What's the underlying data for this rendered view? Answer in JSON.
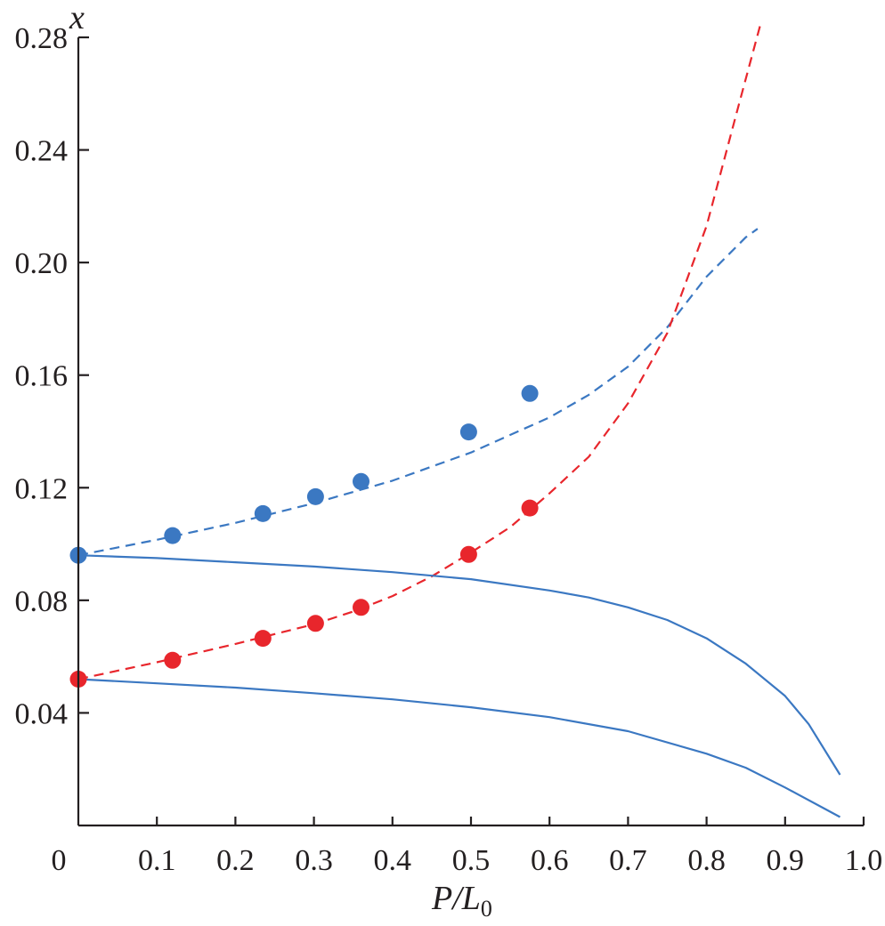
{
  "chart_data": {
    "type": "line",
    "title": "",
    "xlabel": {
      "main": "P/L",
      "subscript": "0"
    },
    "ylabel": "x",
    "xlim": [
      0,
      1.0
    ],
    "ylim": [
      0.0,
      0.28
    ],
    "xticks": [
      0,
      0.1,
      0.2,
      0.3,
      0.4,
      0.5,
      0.6,
      0.7,
      0.8,
      0.9,
      1.0
    ],
    "xtick_labels": [
      "0",
      "0.1",
      "0.2",
      "0.3",
      "0.4",
      "0.5",
      "0.6",
      "0.7",
      "0.8",
      "0.9",
      "1.0"
    ],
    "yticks": [
      0.04,
      0.08,
      0.12,
      0.16,
      0.2,
      0.24,
      0.28
    ],
    "ytick_labels": [
      "0.04",
      "0.08",
      "0.12",
      "0.16",
      "0.20",
      "0.24",
      "0.28"
    ],
    "grid": false,
    "legend": "none",
    "colors": {
      "blue": "#3b78c2",
      "red": "#e8262c",
      "axis": "#231f20"
    },
    "series": [
      {
        "name": "blue-dashed-fit",
        "style": "dashed",
        "color": "#3b78c2",
        "x": [
          0.0,
          0.1,
          0.2,
          0.3,
          0.4,
          0.5,
          0.6,
          0.65,
          0.7,
          0.75,
          0.8,
          0.85,
          0.865
        ],
        "y": [
          0.096,
          0.1015,
          0.1075,
          0.1145,
          0.1225,
          0.1325,
          0.145,
          0.153,
          0.163,
          0.177,
          0.195,
          0.209,
          0.212
        ]
      },
      {
        "name": "red-dashed-fit",
        "style": "dashed",
        "color": "#e8262c",
        "x": [
          0.0,
          0.1,
          0.2,
          0.3,
          0.35,
          0.4,
          0.45,
          0.5,
          0.55,
          0.6,
          0.65,
          0.7,
          0.75,
          0.8,
          0.84,
          0.87
        ],
        "y": [
          0.052,
          0.058,
          0.0645,
          0.0715,
          0.076,
          0.0815,
          0.0885,
          0.097,
          0.106,
          0.118,
          0.131,
          0.15,
          0.175,
          0.213,
          0.255,
          0.286
        ]
      },
      {
        "name": "blue-solid-upper",
        "style": "solid",
        "color": "#3b78c2",
        "x": [
          0.0,
          0.1,
          0.2,
          0.3,
          0.4,
          0.5,
          0.6,
          0.65,
          0.7,
          0.75,
          0.8,
          0.85,
          0.9,
          0.93,
          0.97
        ],
        "y": [
          0.096,
          0.095,
          0.0935,
          0.092,
          0.09,
          0.0875,
          0.0835,
          0.081,
          0.0775,
          0.073,
          0.0665,
          0.0575,
          0.046,
          0.036,
          0.018
        ]
      },
      {
        "name": "blue-solid-lower",
        "style": "solid",
        "color": "#3b78c2",
        "x": [
          0.0,
          0.1,
          0.2,
          0.3,
          0.4,
          0.5,
          0.6,
          0.7,
          0.8,
          0.85,
          0.9,
          0.95,
          0.97
        ],
        "y": [
          0.052,
          0.0505,
          0.049,
          0.047,
          0.0448,
          0.042,
          0.0385,
          0.0335,
          0.0255,
          0.0205,
          0.0135,
          0.006,
          0.003
        ]
      }
    ],
    "points": [
      {
        "name": "blue-data",
        "color": "#3b78c2",
        "x": [
          0.0,
          0.12,
          0.235,
          0.302,
          0.36,
          0.497,
          0.575
        ],
        "y": [
          0.096,
          0.103,
          0.1108,
          0.1168,
          0.1222,
          0.1398,
          0.1535
        ]
      },
      {
        "name": "red-data",
        "color": "#e8262c",
        "x": [
          0.0,
          0.12,
          0.235,
          0.302,
          0.36,
          0.497,
          0.575
        ],
        "y": [
          0.052,
          0.0587,
          0.0665,
          0.0718,
          0.0775,
          0.0963,
          0.1128
        ]
      }
    ]
  }
}
